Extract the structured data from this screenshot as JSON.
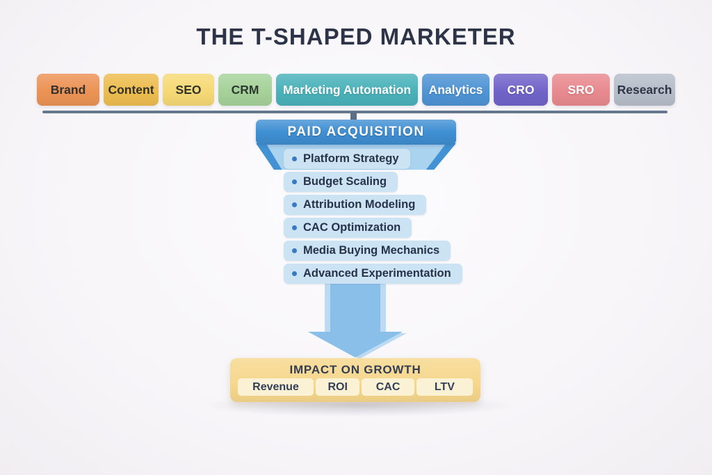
{
  "title": "THE T-SHAPED MARKETER",
  "t_bar": {
    "color": "#66788F",
    "connector_color": "#5C6D86"
  },
  "skills": {
    "items": [
      {
        "label": "Brand",
        "bg": "#EC9355",
        "fg": "#33322E"
      },
      {
        "label": "Content",
        "bg": "#EDBD4F",
        "fg": "#32302A"
      },
      {
        "label": "SEO",
        "bg": "#F6D976",
        "fg": "#343229"
      },
      {
        "label": "CRM",
        "bg": "#A6D29A",
        "fg": "#2E3931"
      },
      {
        "label": "Marketing Automation",
        "bg": "#4BB2BA",
        "fg": "#FFFFFF"
      },
      {
        "label": "Analytics",
        "bg": "#4F94D4",
        "fg": "#FFFFFF"
      },
      {
        "label": "CRO",
        "bg": "#7164C9",
        "fg": "#FFFFFF"
      },
      {
        "label": "SRO",
        "bg": "#E88A8F",
        "fg": "#FFFFFF"
      },
      {
        "label": "Research",
        "bg": "#B6BEC9",
        "fg": "#2F3545"
      }
    ]
  },
  "vertical": {
    "header": {
      "label": "PAID ACQUISITION",
      "bg": "#3F8FD3",
      "fg": "#FFFFFF"
    },
    "funnel_dark": "#4292D4",
    "funnel_light": "#AAD3EF",
    "item_bg": "#CCE3F4",
    "bullet_color": "#3779C4",
    "items": [
      "Platform Strategy",
      "Budget Scaling",
      "Attribution Modeling",
      "CAC Optimization",
      "Media Buying Mechanics",
      "Advanced Experimentation"
    ],
    "arrow_color": "#89BFE9",
    "arrow_highlight": "#BCDAF2"
  },
  "impact": {
    "title": "IMPACT ON GROWTH",
    "bg": "#F6D78C",
    "metric_bg": "#FBF2D6",
    "metrics": [
      "Revenue",
      "ROI",
      "CAC",
      "LTV"
    ]
  }
}
